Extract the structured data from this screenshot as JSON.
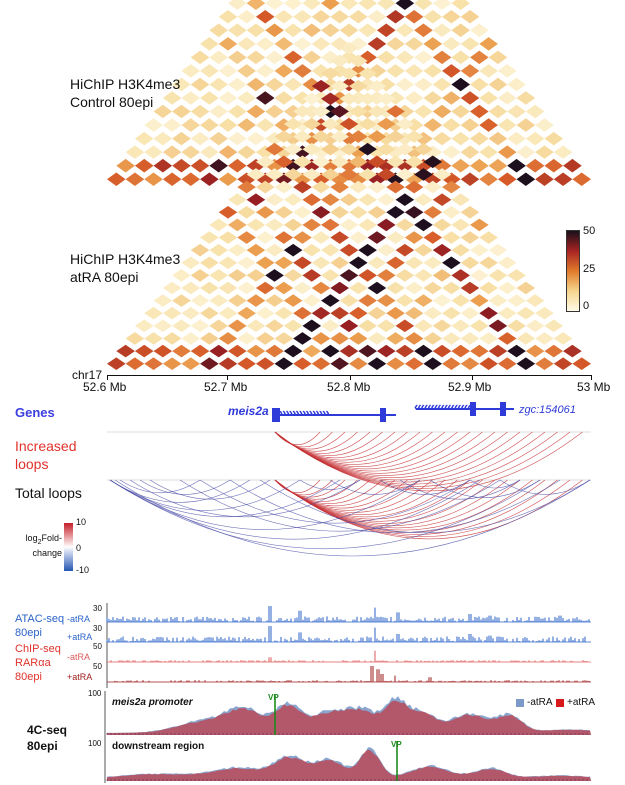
{
  "panels": {
    "hic_control": {
      "line1": "HiChIP H3K4me3",
      "line2": "Control 80epi"
    },
    "hic_atra": {
      "line1": "HiChIP H3K4me3",
      "line2": "atRA 80epi"
    }
  },
  "colorbar": {
    "max": "50",
    "mid": "25",
    "min": "0"
  },
  "axis": {
    "chrom": "chr17",
    "ticks": [
      "52.6 Mb",
      "52.7 Mb",
      "52.8 Mb",
      "52.9 Mb",
      "53 Mb"
    ]
  },
  "genes": {
    "label": "Genes",
    "gene1": "meis2a",
    "gene2": "zgc:154061",
    "gene1_arrows": "›››››››››››››››››",
    "gene2_arrows": "‹‹‹‹‹‹‹‹‹‹‹‹‹‹‹‹‹‹"
  },
  "loops": {
    "increased_line1": "Increased",
    "increased_line2": "loops",
    "total": "Total loops"
  },
  "foldchange": {
    "title_prefix": "log",
    "title_sub": "2",
    "title_suffix": "Fold-",
    "title_line2": "change",
    "max": "10",
    "mid": "0",
    "min": "-10"
  },
  "atac": {
    "line1": "ATAC-seq",
    "line2": "80epi",
    "track1": "-atRA",
    "track2": "+atRA",
    "scale1": "30",
    "scale2": "30"
  },
  "chip": {
    "line1": "ChIP-seq",
    "line2": "RARαa",
    "line3": "80epi",
    "track1": "-atRA",
    "track2": "+atRA",
    "scale1": "50",
    "scale2": "50"
  },
  "fourc": {
    "line1": "4C-seq",
    "line2": "80epi",
    "panel1": "meis2a promoter",
    "panel2": "downstream region",
    "vp": "VP",
    "scale": "100",
    "legend_minus": "-atRA",
    "legend_plus": "+atRA"
  },
  "colors": {
    "blue_text": "#3b3fe0",
    "red_text": "#e0322b",
    "gene": "#2f3bd8",
    "loop_red": "#c8363a",
    "loop_blue": "#4b4ea8",
    "atac": "#2b63c9",
    "chip_light": "#e05a5a",
    "chip_dark": "#9e1a1a",
    "fourc_minus": "#7c9ac8",
    "fourc_plus": "#d61a1a",
    "vp_green": "#1c8a1c"
  }
}
